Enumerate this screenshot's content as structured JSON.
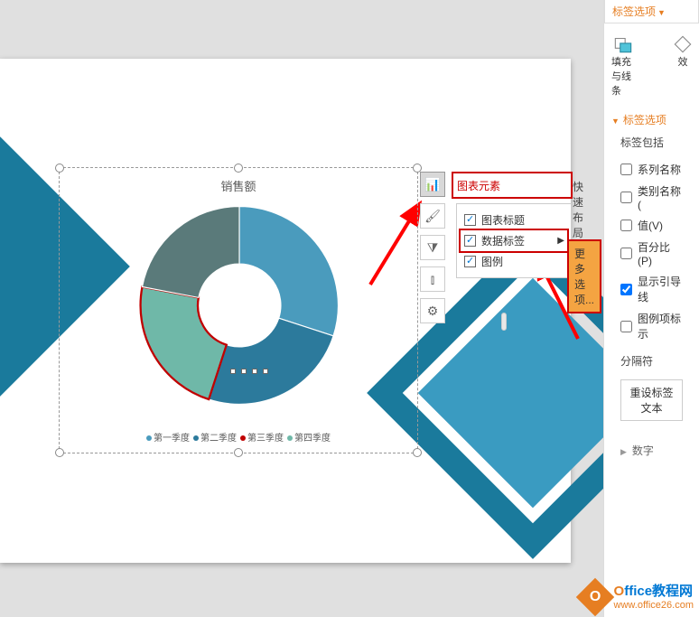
{
  "chart": {
    "type": "pie",
    "title": "销售额",
    "slices": [
      {
        "label": "第一季度",
        "value": 30,
        "color": "#4a9bbd"
      },
      {
        "label": "第二季度",
        "value": 25,
        "color": "#2c7a9c"
      },
      {
        "label": "第三季度",
        "value": 23,
        "color": "#6fb8a8"
      },
      {
        "label": "第四季度",
        "value": 22,
        "color": "#5a7a7a"
      }
    ],
    "inner_radius_pct": 42,
    "outer_radius_pct": 100,
    "selected_slice_index": 2,
    "selected_outline_color": "#c00000",
    "legend_dots": [
      "#4a9bbd",
      "#2c7a9c",
      "#c00000",
      "#6fb8a8"
    ]
  },
  "toolbar": {
    "items": [
      {
        "name": "chart-elements-icon",
        "glyph": "📊",
        "active": true
      },
      {
        "name": "chart-styles-icon",
        "glyph": "🖌",
        "active": false
      },
      {
        "name": "chart-filters-icon",
        "glyph": "⧩",
        "active": false
      },
      {
        "name": "chart-type-icon",
        "glyph": "⫾",
        "active": false
      },
      {
        "name": "chart-settings-icon",
        "glyph": "⚙",
        "active": false
      }
    ]
  },
  "popup": {
    "title": "图表元素",
    "secondary": "快速布局",
    "items": [
      {
        "label": "图表标题",
        "checked": true,
        "highlighted": false,
        "has_arrow": false
      },
      {
        "label": "数据标签",
        "checked": true,
        "highlighted": true,
        "has_arrow": true
      },
      {
        "label": "图例",
        "checked": true,
        "highlighted": false,
        "has_arrow": false
      }
    ],
    "more_options": "更多选项..."
  },
  "panel": {
    "tab_label": "标签选项",
    "icon1_label": "填充与线条",
    "icon2_label": "效",
    "section_title": "标签选项",
    "include_label": "标签包括",
    "options": [
      {
        "label": "系列名称",
        "checked": false
      },
      {
        "label": "类别名称(",
        "checked": false
      },
      {
        "label": "值(V)",
        "checked": false
      },
      {
        "label": "百分比(P)",
        "checked": false
      },
      {
        "label": "显示引导线",
        "checked": true
      },
      {
        "label": "图例项标示",
        "checked": false
      }
    ],
    "separator_label": "分隔符",
    "reset_label": "重设标签文本",
    "number_label": "数字"
  },
  "watermark": {
    "title_prefix": "O",
    "title_rest": "ffice教程网",
    "url": "www.office26.com",
    "logo_letter": "O"
  },
  "annotation": {
    "arrow_color": "#ff0000"
  }
}
